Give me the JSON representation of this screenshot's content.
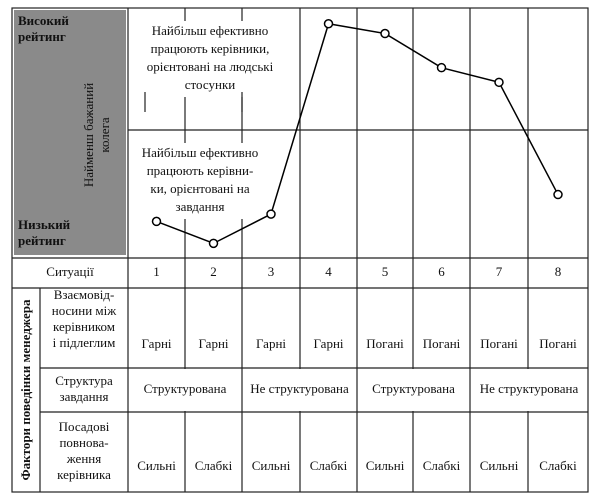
{
  "chart_data": {
    "type": "line",
    "categories": [
      "1",
      "2",
      "3",
      "4",
      "5",
      "6",
      "7",
      "8"
    ],
    "series": [
      {
        "values": [
          15,
          6,
          18,
          96,
          92,
          78,
          72,
          26
        ],
        "color": "#000000"
      }
    ],
    "ylim": [
      0,
      100
    ],
    "y_top_label": [
      "Високий",
      "рейтинг"
    ],
    "y_bottom_label": [
      "Низький",
      "рейтинг"
    ],
    "ylabel": [
      "Найменш бажаний",
      "колега"
    ],
    "annotations": [
      [
        "Найбільш ефективно",
        "працюють керівники,",
        "орієнтовані на людські",
        "стосунки"
      ],
      [
        "Найбільш ефективно",
        "працюють керівни-",
        "ки, орієнтовані на",
        "завдання"
      ]
    ]
  },
  "table": {
    "situations_label": "Ситуації",
    "factors_label": "Фактори поведінки менеджера",
    "rows": [
      {
        "label": [
          "Взаємовід-",
          "носини між",
          "керівником",
          "і підлеглим"
        ],
        "cells": [
          {
            "text": "Гарні",
            "span": 1
          },
          {
            "text": "Гарні",
            "span": 1
          },
          {
            "text": "Гарні",
            "span": 1
          },
          {
            "text": "Гарні",
            "span": 1
          },
          {
            "text": "Погані",
            "span": 1
          },
          {
            "text": "Погані",
            "span": 1
          },
          {
            "text": "Погані",
            "span": 1
          },
          {
            "text": "Погані",
            "span": 1
          }
        ]
      },
      {
        "label": [
          "Структура",
          "завдання"
        ],
        "cells": [
          {
            "text": "Структурована",
            "span": 2
          },
          {
            "text": "Не структурована",
            "span": 2
          },
          {
            "text": "Структурована",
            "span": 2
          },
          {
            "text": "Не структурована",
            "span": 2
          }
        ]
      },
      {
        "label": [
          "Посадові",
          "повнова-",
          "ження",
          "керівника"
        ],
        "cells": [
          {
            "text": "Сильні",
            "span": 1
          },
          {
            "text": "Слабкі",
            "span": 1
          },
          {
            "text": "Сильні",
            "span": 1
          },
          {
            "text": "Слабкі",
            "span": 1
          },
          {
            "text": "Сильні",
            "span": 1
          },
          {
            "text": "Слабкі",
            "span": 1
          },
          {
            "text": "Сильні",
            "span": 1
          },
          {
            "text": "Слабкі",
            "span": 1
          }
        ]
      }
    ]
  }
}
